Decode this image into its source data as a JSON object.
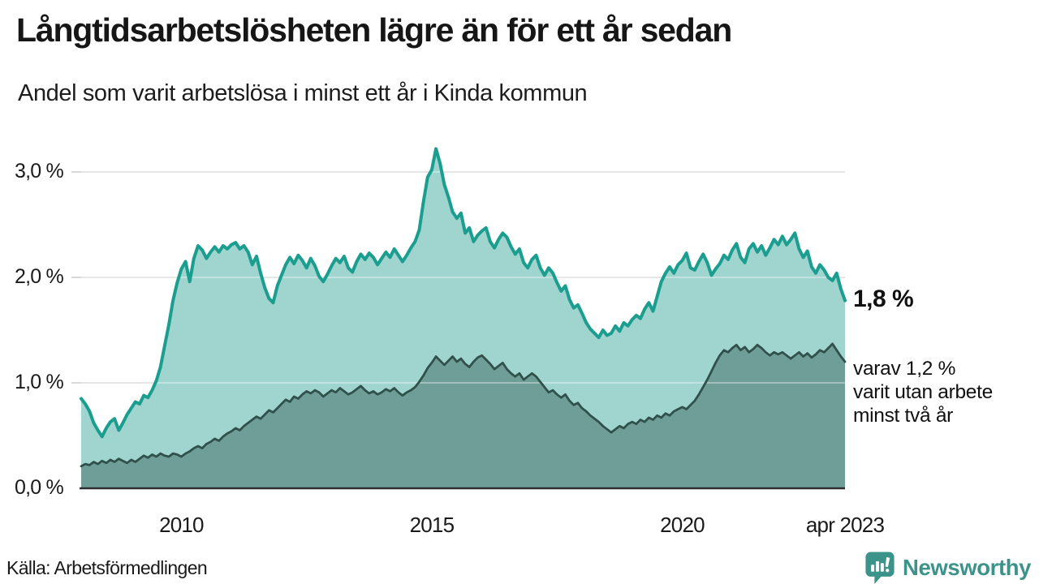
{
  "header": {
    "title": "Långtidsarbetslösheten lägre än för ett år sedan",
    "subtitle": "Andel som varit arbetslösa i minst ett år i Kinda kommun"
  },
  "colors": {
    "accent_line": "#1b9e8f",
    "accent_fill": "#9fd5ce",
    "dark_line": "#30514b",
    "dark_fill": "#6f9e98",
    "gridline": "#d9d9d9",
    "baseline": "#2e2e2e",
    "brand_teal": "#3b9389"
  },
  "chart_data": {
    "type": "area",
    "title": "Långtidsarbetslösheten lägre än för ett år sedan",
    "subtitle": "Andel som varit arbetslösa i minst ett år i Kinda kommun",
    "x_monthly_start": "2008-01",
    "x_monthly_end": "2023-04",
    "ylim": [
      0,
      3.4
    ],
    "grid": true,
    "y_ticks": [
      {
        "label": "0,0 %",
        "value": 0
      },
      {
        "label": "1,0 %",
        "value": 1
      },
      {
        "label": "2,0 %",
        "value": 2
      },
      {
        "label": "3,0 %",
        "value": 3
      }
    ],
    "x_ticks": [
      {
        "label": "2010",
        "month_index": 24
      },
      {
        "label": "2015",
        "month_index": 84
      },
      {
        "label": "2020",
        "month_index": 144
      },
      {
        "label": "apr 2023",
        "month_index": 183
      }
    ],
    "series": [
      {
        "name": "Andel arbetslösa minst ett år",
        "line_color": "#1b9e8f",
        "fill_color": "#9fd5ce",
        "line_width": 4,
        "values": [
          0.85,
          0.8,
          0.73,
          0.62,
          0.55,
          0.49,
          0.57,
          0.63,
          0.66,
          0.55,
          0.62,
          0.7,
          0.76,
          0.82,
          0.8,
          0.88,
          0.86,
          0.93,
          1.02,
          1.15,
          1.35,
          1.55,
          1.78,
          1.95,
          2.08,
          2.15,
          1.96,
          2.18,
          2.3,
          2.26,
          2.18,
          2.24,
          2.29,
          2.24,
          2.3,
          2.27,
          2.31,
          2.33,
          2.27,
          2.3,
          2.24,
          2.12,
          2.2,
          2.04,
          1.9,
          1.8,
          1.76,
          1.92,
          2.02,
          2.12,
          2.19,
          2.13,
          2.21,
          2.16,
          2.09,
          2.18,
          2.11,
          2.01,
          1.96,
          2.03,
          2.11,
          2.18,
          2.14,
          2.2,
          2.09,
          2.05,
          2.15,
          2.22,
          2.17,
          2.23,
          2.19,
          2.12,
          2.18,
          2.24,
          2.19,
          2.27,
          2.21,
          2.15,
          2.21,
          2.28,
          2.34,
          2.45,
          2.72,
          2.95,
          3.02,
          3.22,
          3.08,
          2.88,
          2.76,
          2.62,
          2.56,
          2.61,
          2.42,
          2.47,
          2.34,
          2.4,
          2.44,
          2.47,
          2.34,
          2.28,
          2.36,
          2.42,
          2.38,
          2.29,
          2.22,
          2.27,
          2.14,
          2.09,
          2.17,
          2.21,
          2.09,
          2.02,
          2.09,
          2.04,
          1.95,
          1.87,
          1.92,
          1.79,
          1.71,
          1.74,
          1.66,
          1.57,
          1.51,
          1.47,
          1.43,
          1.5,
          1.45,
          1.47,
          1.54,
          1.49,
          1.57,
          1.54,
          1.6,
          1.64,
          1.61,
          1.7,
          1.76,
          1.68,
          1.82,
          1.96,
          2.04,
          2.1,
          2.04,
          2.12,
          2.16,
          2.23,
          2.09,
          2.07,
          2.15,
          2.22,
          2.14,
          2.02,
          2.08,
          2.13,
          2.21,
          2.17,
          2.26,
          2.32,
          2.19,
          2.14,
          2.27,
          2.32,
          2.24,
          2.3,
          2.21,
          2.28,
          2.36,
          2.31,
          2.39,
          2.31,
          2.36,
          2.42,
          2.27,
          2.19,
          2.25,
          2.1,
          2.04,
          2.12,
          2.07,
          2.0,
          1.97,
          2.04,
          1.89,
          1.78
        ]
      },
      {
        "name": "varav utan arbete minst två år",
        "line_color": "#30514b",
        "fill_color": "#6f9e98",
        "line_width": 2.8,
        "values": [
          0.21,
          0.23,
          0.22,
          0.25,
          0.23,
          0.26,
          0.24,
          0.27,
          0.25,
          0.28,
          0.26,
          0.24,
          0.27,
          0.25,
          0.28,
          0.31,
          0.29,
          0.32,
          0.3,
          0.33,
          0.31,
          0.3,
          0.33,
          0.32,
          0.3,
          0.33,
          0.35,
          0.38,
          0.4,
          0.38,
          0.42,
          0.44,
          0.47,
          0.45,
          0.49,
          0.52,
          0.54,
          0.57,
          0.55,
          0.59,
          0.62,
          0.65,
          0.68,
          0.66,
          0.7,
          0.74,
          0.72,
          0.76,
          0.8,
          0.84,
          0.82,
          0.87,
          0.85,
          0.89,
          0.92,
          0.9,
          0.93,
          0.91,
          0.87,
          0.9,
          0.93,
          0.91,
          0.95,
          0.92,
          0.89,
          0.91,
          0.94,
          0.97,
          0.93,
          0.9,
          0.92,
          0.89,
          0.91,
          0.94,
          0.92,
          0.95,
          0.91,
          0.88,
          0.91,
          0.93,
          0.96,
          1.01,
          1.07,
          1.14,
          1.19,
          1.25,
          1.21,
          1.17,
          1.21,
          1.25,
          1.2,
          1.23,
          1.18,
          1.15,
          1.2,
          1.24,
          1.26,
          1.22,
          1.18,
          1.13,
          1.16,
          1.19,
          1.13,
          1.09,
          1.06,
          1.09,
          1.03,
          1.06,
          1.09,
          1.06,
          1.01,
          0.96,
          0.91,
          0.93,
          0.89,
          0.86,
          0.89,
          0.83,
          0.79,
          0.81,
          0.76,
          0.73,
          0.69,
          0.66,
          0.63,
          0.59,
          0.56,
          0.53,
          0.56,
          0.59,
          0.57,
          0.61,
          0.63,
          0.61,
          0.65,
          0.63,
          0.67,
          0.65,
          0.69,
          0.67,
          0.71,
          0.69,
          0.73,
          0.75,
          0.77,
          0.75,
          0.79,
          0.83,
          0.89,
          0.96,
          1.03,
          1.11,
          1.19,
          1.26,
          1.31,
          1.29,
          1.33,
          1.36,
          1.31,
          1.34,
          1.29,
          1.32,
          1.36,
          1.33,
          1.29,
          1.26,
          1.29,
          1.27,
          1.29,
          1.26,
          1.23,
          1.26,
          1.29,
          1.25,
          1.28,
          1.24,
          1.27,
          1.31,
          1.29,
          1.33,
          1.37,
          1.31,
          1.25,
          1.2
        ]
      }
    ],
    "annotations": [
      {
        "text": "1,8 %",
        "series": 0
      },
      {
        "text": "varav 1,2 % varit utan arbete minst två år",
        "series": 1
      }
    ]
  },
  "annotation": {
    "latest_value": "1,8 %",
    "note_lines": [
      "varav 1,2 %",
      "varit utan arbete",
      "minst två år"
    ]
  },
  "footer": {
    "source": "Källa: Arbetsförmedlingen",
    "brand": "Newsworthy"
  }
}
